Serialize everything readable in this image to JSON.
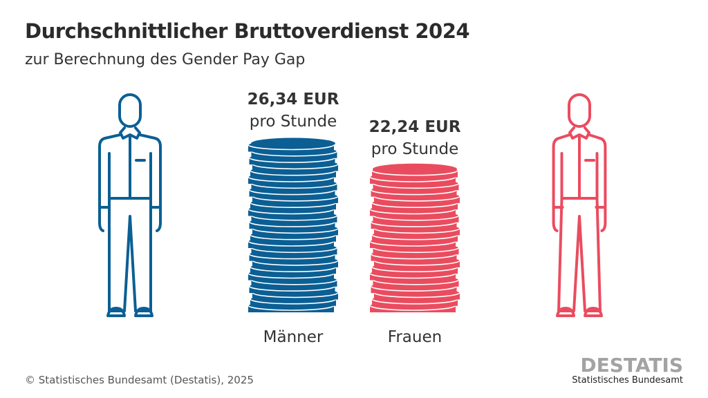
{
  "title": "Durchschnittlicher Bruttoverdienst 2024",
  "subtitle": "zur Berechnung des Gender Pay Gap",
  "chart_data": {
    "type": "bar",
    "categories": [
      "Männer",
      "Frauen"
    ],
    "values": [
      26.34,
      22.24
    ],
    "value_labels": [
      "26,34 EUR",
      "22,24 EUR"
    ],
    "unit_label": "pro Stunde",
    "colors": [
      "#0b5f94",
      "#ea4c5f"
    ],
    "style": "coin stacks with person pictograms"
  },
  "footer": {
    "source": "© Statistisches Bundesamt (Destatis), 2025"
  },
  "logo": {
    "word": "DESTATIS",
    "sub": "Statistisches Bundesamt"
  }
}
